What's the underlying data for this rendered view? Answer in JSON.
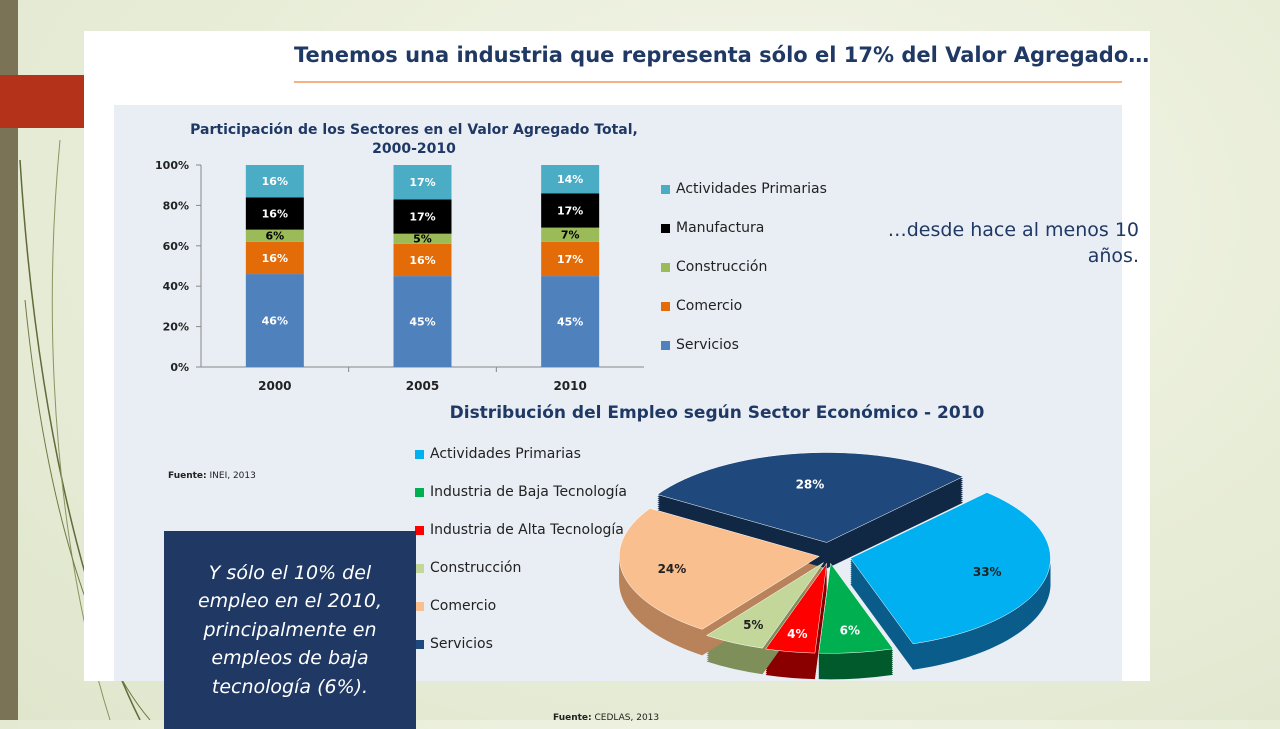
{
  "slide": {
    "title": "Tenemos una industria que representa sólo el 17% del Valor Agregado…",
    "note_top": "…desde hace al menos 10 años.",
    "note_bottom": "Y sólo el 10% del empleo en el 2010, principalmente en empleos de baja tecnología (6%).",
    "source_1": "INEI, 2013",
    "source_2": "CEDLAS, 2013",
    "source_prefix": "Fuente:"
  },
  "colors": {
    "title": "#1f3864",
    "accent_block": "#b5321a",
    "note_box": "#1f3864"
  },
  "chart_data": [
    {
      "type": "bar",
      "stacked": true,
      "title": "Participación de los Sectores en el Valor Agregado Total, 2000-2010",
      "title_lines": [
        "Participación de los Sectores en el Valor Agregado Total,",
        "2000-2010"
      ],
      "categories": [
        "2000",
        "2005",
        "2010"
      ],
      "ylim": [
        0,
        100
      ],
      "yticks": [
        "0%",
        "20%",
        "40%",
        "60%",
        "80%",
        "100%"
      ],
      "legend_position": "right",
      "series": [
        {
          "name": "Servicios",
          "color": "#4f81bd",
          "values": [
            46,
            45,
            45
          ],
          "labels": [
            "46%",
            "45%",
            "45%"
          ]
        },
        {
          "name": "Comercio",
          "color": "#e36c09",
          "values": [
            16,
            16,
            17
          ],
          "labels": [
            "16%",
            "16%",
            "17%"
          ]
        },
        {
          "name": "Construcción",
          "color": "#9bbb59",
          "values": [
            6,
            5,
            7
          ],
          "labels": [
            "6%",
            "5%",
            "7%"
          ]
        },
        {
          "name": "Manufactura",
          "color": "#000000",
          "values": [
            16,
            17,
            17
          ],
          "labels": [
            "16%",
            "17%",
            "17%"
          ]
        },
        {
          "name": "Actividades Primarias",
          "color": "#4bacc6",
          "values": [
            16,
            17,
            14
          ],
          "labels": [
            "16%",
            "17%",
            "14%"
          ]
        }
      ],
      "legend_order": [
        "Actividades Primarias",
        "Manufactura",
        "Construcción",
        "Comercio",
        "Servicios"
      ]
    },
    {
      "type": "pie",
      "title": "Distribución del Empleo según Sector Económico - 2010",
      "legend_position": "left",
      "slices": [
        {
          "name": "Actividades Primarias",
          "value": 33,
          "label": "33%",
          "color": "#00b0f0",
          "side": "#0a5c8a"
        },
        {
          "name": "Industria de Baja Tecnología",
          "value": 6,
          "label": "6%",
          "color": "#00b050",
          "side": "#005a2c"
        },
        {
          "name": "Industria de Alta Tecnología",
          "value": 4,
          "label": "4%",
          "color": "#ff0000",
          "side": "#8a0000"
        },
        {
          "name": "Construcción",
          "value": 5,
          "label": "5%",
          "color": "#c4d79b",
          "side": "#7f8f5a"
        },
        {
          "name": "Comercio",
          "value": 24,
          "label": "24%",
          "color": "#fabf8f",
          "side": "#b8825a"
        },
        {
          "name": "Servicios",
          "value": 28,
          "label": "28%",
          "color": "#1f497d",
          "side": "#112845"
        }
      ]
    }
  ]
}
